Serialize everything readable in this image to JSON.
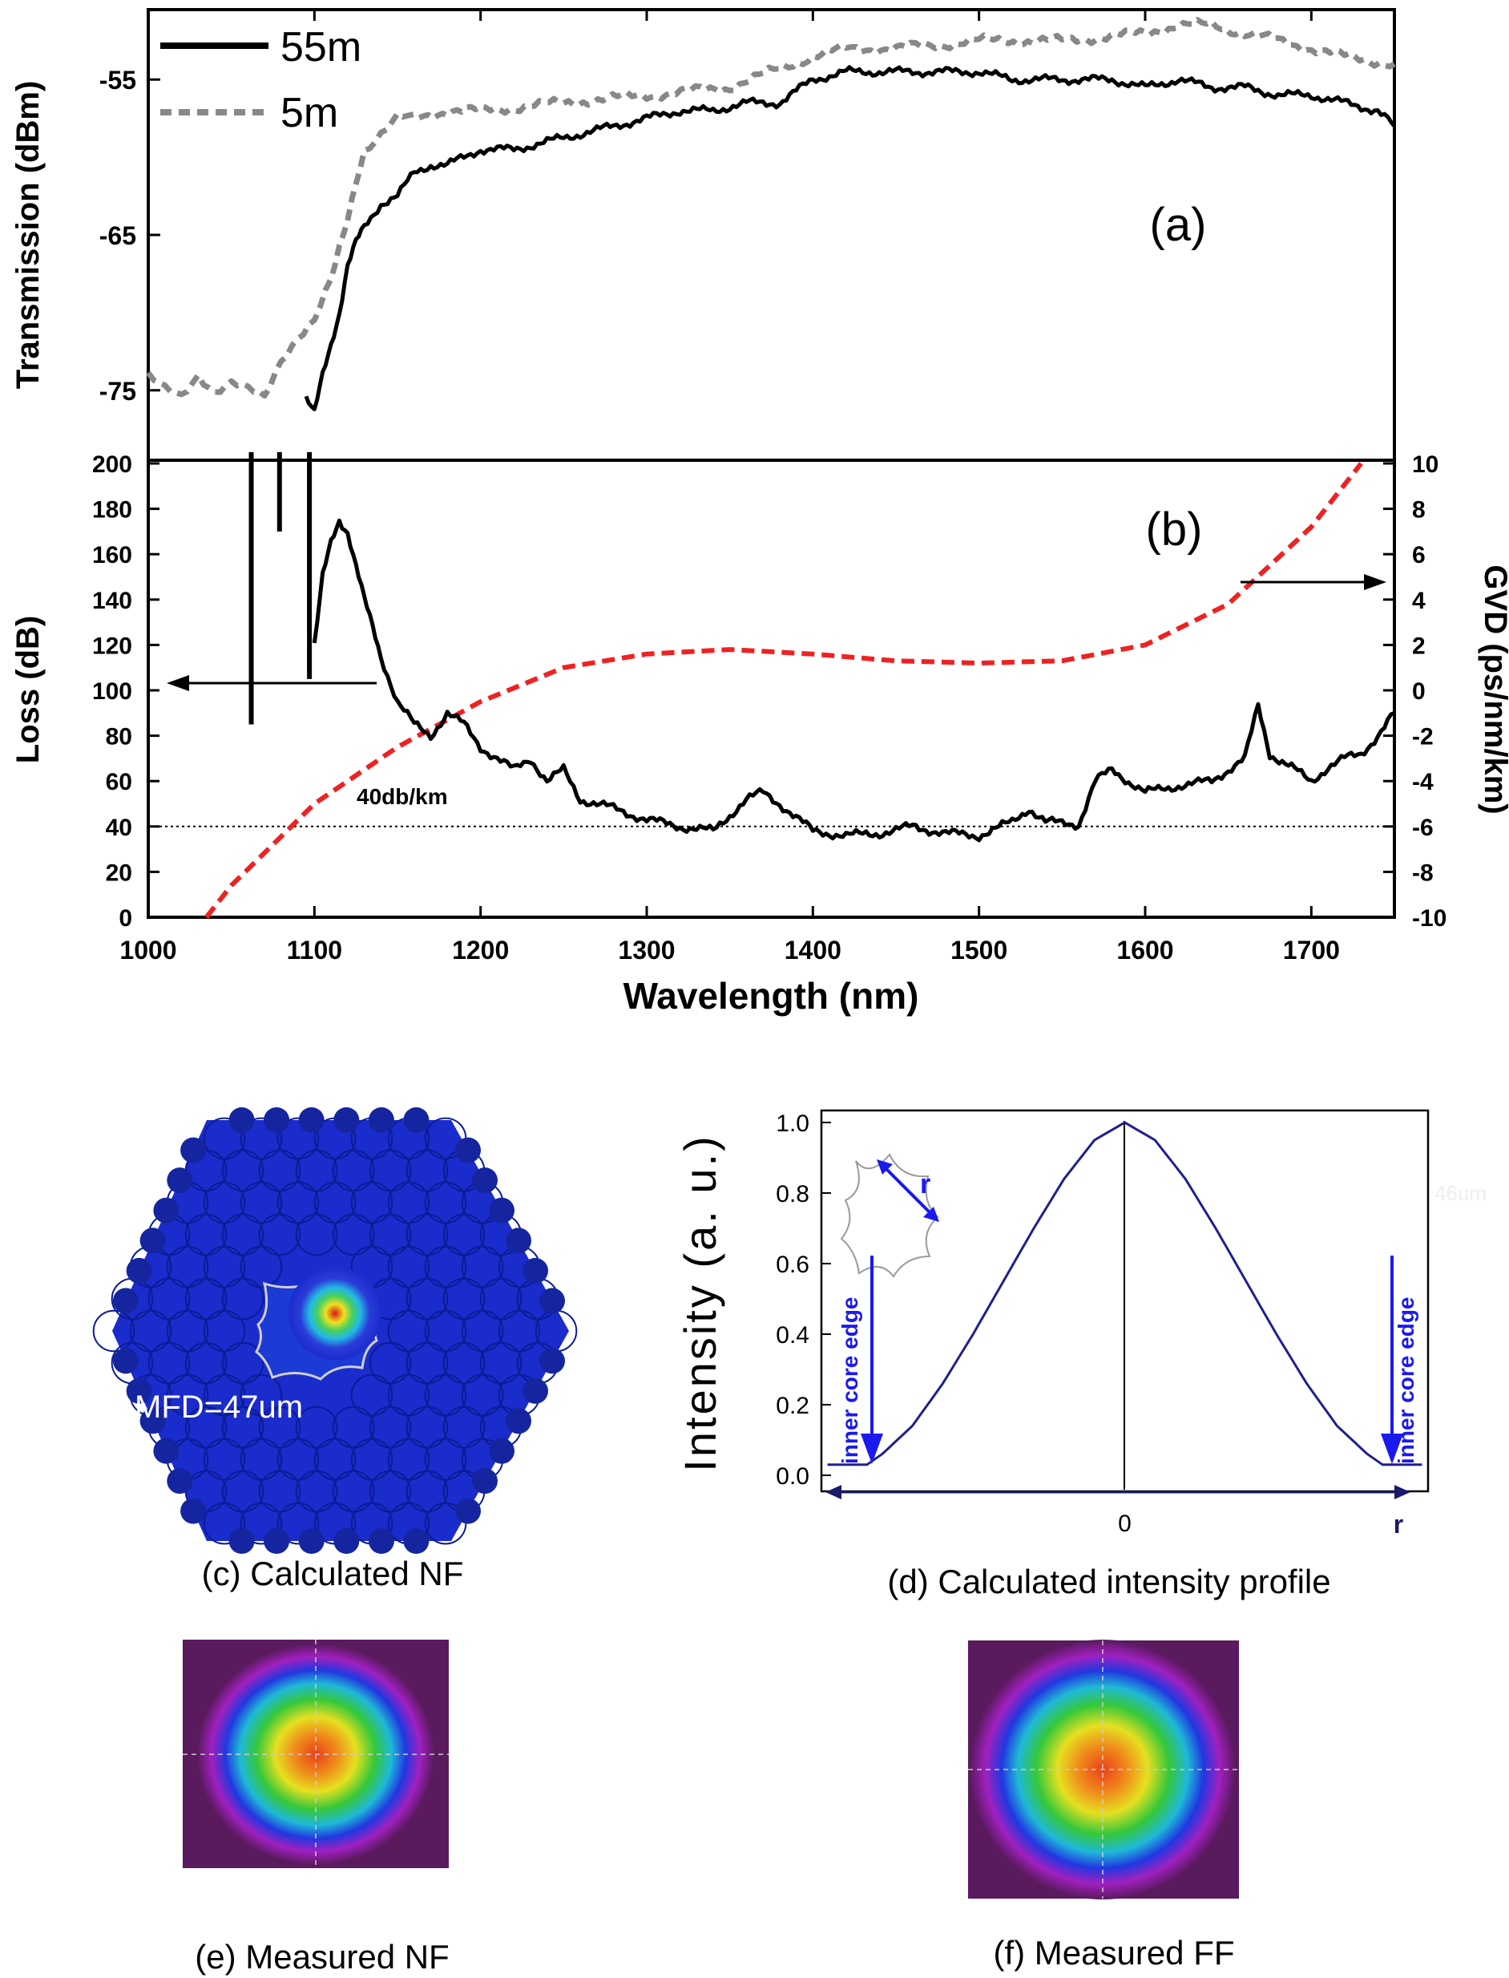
{
  "figure": {
    "panel_a_label": "(a)",
    "panel_b_label": "(b)",
    "caption_c": "(c) Calculated NF",
    "caption_d": "(d) Calculated intensity profile",
    "caption_e": "(e) Measured NF",
    "caption_f": "(f) Measured FF",
    "nf_mfd_label": "MFD=47um",
    "ghost_label": "46um",
    "inner_core_edge_left": "inner core edge",
    "inner_core_edge_right": "inner core edge",
    "inset_r_label": "r",
    "colors": {
      "black": "#000000",
      "gray": "#888888",
      "red": "#ee2222",
      "blue": "#1a1aee",
      "navy": "#1f1f8f"
    }
  },
  "chart_data": [
    {
      "id": "a",
      "type": "line",
      "title": "",
      "xlabel": "",
      "ylabel": "Transmission (dBm)",
      "xlim": [
        1000,
        1750
      ],
      "ylim": [
        -79.5,
        -50.5
      ],
      "yticks": [
        -55,
        -65,
        -75
      ],
      "ytick_labels": [
        "-55",
        "-65",
        "-75"
      ],
      "legend_position": "top-left",
      "series": [
        {
          "name": "55m",
          "style": "solid",
          "color": "#000000",
          "x": [
            1095,
            1100,
            1105,
            1110,
            1115,
            1120,
            1125,
            1130,
            1140,
            1150,
            1160,
            1170,
            1180,
            1200,
            1220,
            1240,
            1260,
            1280,
            1300,
            1320,
            1340,
            1360,
            1380,
            1400,
            1420,
            1440,
            1460,
            1480,
            1500,
            1520,
            1540,
            1560,
            1580,
            1600,
            1620,
            1640,
            1660,
            1680,
            1700,
            1720,
            1740,
            1750
          ],
          "y": [
            -75.5,
            -76.5,
            -74,
            -72,
            -70,
            -67,
            -65.5,
            -64.5,
            -63,
            -62.5,
            -61,
            -60.5,
            -60.5,
            -59.5,
            -59.5,
            -59,
            -58.5,
            -58,
            -57.5,
            -57,
            -57,
            -56.5,
            -56.5,
            -55,
            -54.5,
            -54.5,
            -54.5,
            -54.5,
            -54.5,
            -55,
            -55,
            -55,
            -55,
            -55.5,
            -55,
            -55.5,
            -55.5,
            -56,
            -56,
            -56.5,
            -57,
            -58
          ]
        },
        {
          "name": "5m",
          "style": "dashed",
          "color": "#888888",
          "x": [
            1000,
            1010,
            1020,
            1030,
            1040,
            1050,
            1060,
            1070,
            1080,
            1090,
            1100,
            1110,
            1115,
            1120,
            1125,
            1130,
            1140,
            1150,
            1160,
            1180,
            1200,
            1250,
            1300,
            1350,
            1400,
            1420,
            1450,
            1500,
            1550,
            1600,
            1620,
            1640,
            1660,
            1680,
            1700,
            1720,
            1750
          ],
          "y": [
            -74,
            -75,
            -75.5,
            -74,
            -75,
            -74.5,
            -75,
            -75.5,
            -73,
            -71.5,
            -70.5,
            -68,
            -66,
            -64,
            -61.5,
            -59.5,
            -58.5,
            -57.5,
            -57.5,
            -57,
            -57,
            -56.5,
            -56,
            -55.5,
            -53.5,
            -53,
            -53,
            -52.5,
            -52.5,
            -52,
            -51.5,
            -51.5,
            -52,
            -52.5,
            -53,
            -53.5,
            -54
          ]
        }
      ],
      "annotations": [
        "(a)"
      ]
    },
    {
      "id": "b",
      "type": "line",
      "title": "",
      "xlabel": "Wavelength (nm)",
      "ylabel": "Loss (dB)",
      "y2label": "GVD (ps/nm/km)",
      "xlim": [
        1000,
        1750
      ],
      "xticks": [
        1000,
        1100,
        1200,
        1300,
        1400,
        1500,
        1600,
        1700
      ],
      "xtick_labels": [
        "1000",
        "1100",
        "1200",
        "1300",
        "1400",
        "1500",
        "1600",
        "1700"
      ],
      "ylim": [
        0,
        200
      ],
      "yticks": [
        0,
        20,
        40,
        60,
        80,
        100,
        120,
        140,
        160,
        180,
        200
      ],
      "ytick_labels": [
        "0",
        "20",
        "40",
        "60",
        "80",
        "100",
        "120",
        "140",
        "160",
        "180",
        "200"
      ],
      "y2lim": [
        -10,
        10
      ],
      "y2ticks": [
        -10,
        -8,
        -6,
        -4,
        -2,
        0,
        2,
        4,
        6,
        8,
        10
      ],
      "y2tick_labels": [
        "-10",
        "-8",
        "-6",
        "-4",
        "-2",
        "0",
        "2",
        "4",
        "6",
        "8",
        "10"
      ],
      "reference_line": {
        "y": 40,
        "label": "40db/km"
      },
      "series": [
        {
          "name": "Loss",
          "axis": "left",
          "style": "solid",
          "color": "#000000",
          "x": [
            1100,
            1105,
            1110,
            1115,
            1120,
            1125,
            1130,
            1135,
            1140,
            1150,
            1160,
            1170,
            1180,
            1190,
            1200,
            1210,
            1220,
            1230,
            1240,
            1250,
            1260,
            1270,
            1280,
            1300,
            1320,
            1340,
            1360,
            1370,
            1380,
            1400,
            1420,
            1440,
            1460,
            1480,
            1500,
            1520,
            1530,
            1540,
            1560,
            1570,
            1580,
            1600,
            1620,
            1640,
            1660,
            1668,
            1675,
            1690,
            1700,
            1710,
            1720,
            1730,
            1740,
            1750
          ],
          "y": [
            120,
            150,
            165,
            175,
            170,
            155,
            140,
            128,
            115,
            95,
            85,
            80,
            90,
            85,
            75,
            70,
            65,
            70,
            60,
            65,
            52,
            50,
            48,
            43,
            40,
            38,
            52,
            55,
            50,
            38,
            36,
            37,
            40,
            37,
            36,
            42,
            48,
            42,
            41,
            60,
            65,
            55,
            58,
            60,
            70,
            93,
            72,
            65,
            60,
            66,
            70,
            72,
            80,
            90
          ]
        },
        {
          "name": "Loss (spikes)",
          "axis": "left",
          "style": "bars",
          "color": "#000000",
          "x": [
            1062,
            1079,
            1097
          ],
          "y_from": [
            85,
            170,
            105
          ],
          "y_to": [
            205,
            205,
            205
          ]
        },
        {
          "name": "GVD",
          "axis": "right",
          "style": "dashed",
          "color": "#ee2222",
          "x": [
            1035,
            1050,
            1075,
            1100,
            1150,
            1200,
            1250,
            1300,
            1350,
            1400,
            1450,
            1500,
            1550,
            1600,
            1650,
            1700,
            1730
          ],
          "y": [
            -10,
            -8.6,
            -6.8,
            -5,
            -2.5,
            -0.5,
            1,
            1.6,
            1.8,
            1.6,
            1.3,
            1.2,
            1.3,
            2,
            3.8,
            7.2,
            10
          ]
        }
      ],
      "annotations": [
        "(b)"
      ]
    },
    {
      "id": "d",
      "type": "line",
      "title": "",
      "xlabel": "",
      "ylabel": "Intensity (a. u.)",
      "xlim": [
        -1,
        1
      ],
      "ylim": [
        0,
        1
      ],
      "yticks": [
        0,
        0.2,
        0.4,
        0.6,
        0.8,
        1.0
      ],
      "ytick_labels": [
        "0.0",
        "0.2",
        "0.4",
        "0.6",
        "0.8",
        "1.0"
      ],
      "xtick_labels": [
        "0",
        "r"
      ],
      "series": [
        {
          "name": "Intensity profile",
          "color": "#1f1f8f",
          "x": [
            -0.98,
            -0.85,
            -0.8,
            -0.7,
            -0.6,
            -0.5,
            -0.4,
            -0.3,
            -0.2,
            -0.1,
            0,
            0.1,
            0.2,
            0.3,
            0.4,
            0.5,
            0.6,
            0.7,
            0.8,
            0.85,
            0.98
          ],
          "y": [
            0.03,
            0.03,
            0.06,
            0.14,
            0.26,
            0.4,
            0.55,
            0.7,
            0.84,
            0.95,
            1.0,
            0.95,
            0.84,
            0.7,
            0.55,
            0.4,
            0.26,
            0.14,
            0.06,
            0.03,
            0.03
          ]
        }
      ],
      "annotations": [
        "inner core edge",
        "inner core edge",
        "r"
      ]
    }
  ]
}
